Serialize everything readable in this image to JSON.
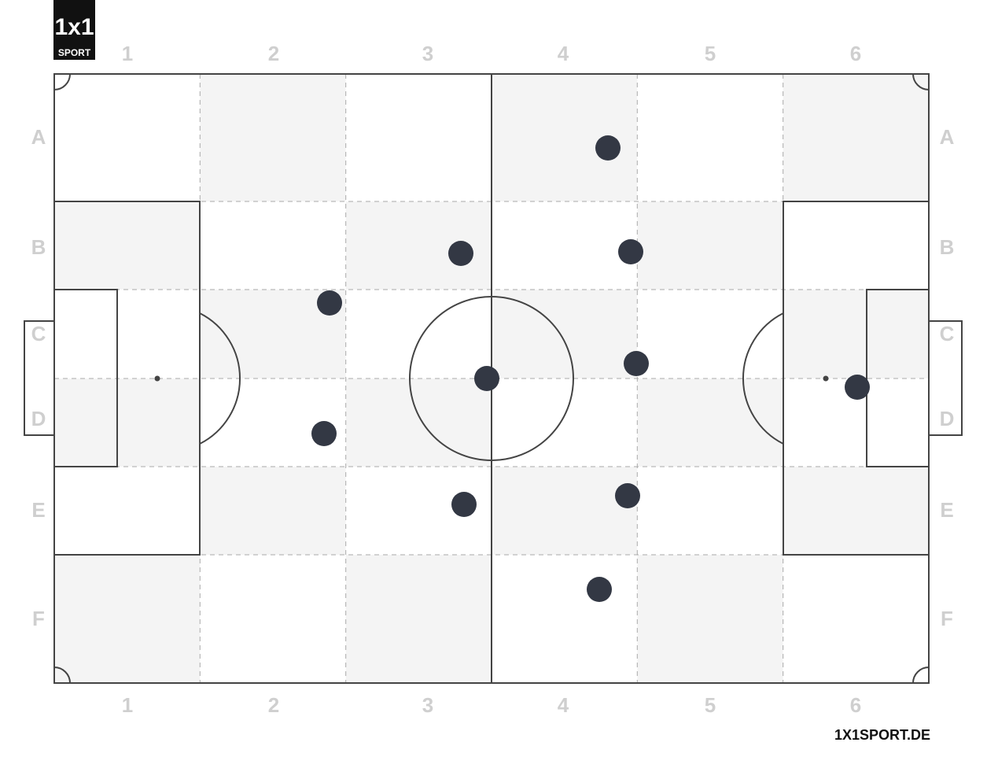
{
  "logo": {
    "mark": "1x1",
    "text": "SPORT"
  },
  "columns": [
    "1",
    "2",
    "3",
    "4",
    "5",
    "6"
  ],
  "rows": [
    "A",
    "B",
    "C",
    "D",
    "E",
    "F"
  ],
  "footer": "1X1SPORT.DE"
}
